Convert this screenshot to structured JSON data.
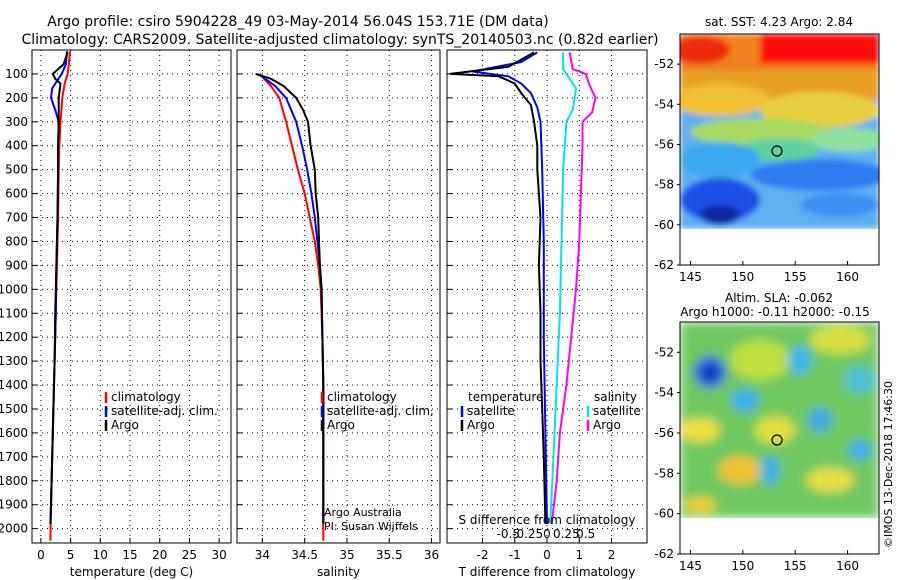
{
  "title_line1": "Argo profile: csiro 5904228_49 03-May-2014 56.04S 153.71E (DM data)",
  "title_line2": "Climatology: CARS2009. Satellite-adjusted climatology: synTS_20140503.nc (0.82d earlier)",
  "credit_line1": "Argo Australia",
  "credit_line2": "PI: Susan Wijffels",
  "vertical_stamp": "©IMOS 13-Dec-2018 17:46:30",
  "colors": {
    "climatology": "#ff0000",
    "satellite": "#0000ff",
    "argo": "#000000",
    "sat_salinity": "#00e5e5",
    "clim_salinity": "#ff00ff"
  },
  "chart_data": [
    {
      "type": "line",
      "xlabel": "temperature (deg C)",
      "xlim": [
        -1.5,
        32
      ],
      "xticks": [
        0,
        5,
        10,
        15,
        20,
        25,
        30
      ],
      "ylim": [
        2060,
        0
      ],
      "yticks": [
        100,
        200,
        300,
        400,
        500,
        600,
        700,
        800,
        900,
        1000,
        1100,
        1200,
        1300,
        1400,
        1500,
        1600,
        1700,
        1800,
        1900,
        2000
      ],
      "legend": [
        "climatology",
        "satellite-adj. clim.",
        "Argo"
      ],
      "series": [
        {
          "name": "climatology",
          "color": "#ff0000",
          "points": [
            [
              4.9,
              5
            ],
            [
              4.7,
              60
            ],
            [
              4.5,
              100
            ],
            [
              4.0,
              140
            ],
            [
              3.6,
              200
            ],
            [
              3.3,
              300
            ],
            [
              3.1,
              400
            ],
            [
              3.0,
              500
            ],
            [
              2.9,
              700
            ],
            [
              2.7,
              900
            ],
            [
              2.5,
              1100
            ],
            [
              2.3,
              1300
            ],
            [
              2.1,
              1500
            ],
            [
              1.9,
              1700
            ],
            [
              1.7,
              1900
            ],
            [
              1.6,
              2050
            ]
          ]
        },
        {
          "name": "satellite-adj. clim.",
          "color": "#0000ff",
          "points": [
            [
              4.4,
              5
            ],
            [
              4.2,
              60
            ],
            [
              3.5,
              100
            ],
            [
              1.9,
              160
            ],
            [
              1.7,
              200
            ],
            [
              2.4,
              250
            ],
            [
              3.0,
              300
            ],
            [
              2.9,
              400
            ],
            [
              2.9,
              500
            ],
            [
              2.8,
              700
            ],
            [
              2.6,
              900
            ],
            [
              2.5,
              1100
            ],
            [
              2.3,
              1300
            ],
            [
              2.1,
              1500
            ],
            [
              1.9,
              1700
            ],
            [
              1.7,
              1900
            ],
            [
              1.6,
              1980
            ]
          ]
        },
        {
          "name": "Argo",
          "color": "#000000",
          "points": [
            [
              4.5,
              10
            ],
            [
              3.8,
              60
            ],
            [
              2.0,
              100
            ],
            [
              2.4,
              120
            ],
            [
              3.3,
              140
            ],
            [
              3.0,
              200
            ],
            [
              3.0,
              300
            ],
            [
              2.9,
              400
            ],
            [
              2.9,
              500
            ],
            [
              2.8,
              700
            ],
            [
              2.6,
              900
            ],
            [
              2.4,
              1100
            ],
            [
              2.3,
              1300
            ],
            [
              2.1,
              1500
            ],
            [
              1.9,
              1700
            ],
            [
              1.7,
              1900
            ],
            [
              1.6,
              1980
            ]
          ]
        }
      ]
    },
    {
      "type": "line",
      "xlabel": "salinity",
      "xlim": [
        33.7,
        36.1
      ],
      "xticks": [
        34,
        34.5,
        35,
        35.5,
        36
      ],
      "xtick_labels": [
        "34",
        "34.5",
        "35",
        "35.5",
        "36"
      ],
      "ylim": [
        2060,
        0
      ],
      "legend": [
        "climatology",
        "satellite-adj. clim.",
        "Argo"
      ],
      "series": [
        {
          "name": "climatology",
          "color": "#ff0000",
          "points": [
            [
              33.97,
              100
            ],
            [
              34.1,
              150
            ],
            [
              34.2,
              200
            ],
            [
              34.28,
              300
            ],
            [
              34.35,
              400
            ],
            [
              34.42,
              500
            ],
            [
              34.5,
              600
            ],
            [
              34.56,
              700
            ],
            [
              34.62,
              800
            ],
            [
              34.66,
              900
            ],
            [
              34.69,
              1000
            ],
            [
              34.71,
              1200
            ],
            [
              34.72,
              1400
            ],
            [
              34.72,
              1600
            ],
            [
              34.72,
              1800
            ],
            [
              34.72,
              2050
            ]
          ]
        },
        {
          "name": "satellite-adj. clim.",
          "color": "#0000ff",
          "points": [
            [
              33.95,
              100
            ],
            [
              34.15,
              150
            ],
            [
              34.28,
              200
            ],
            [
              34.4,
              300
            ],
            [
              34.47,
              400
            ],
            [
              34.53,
              500
            ],
            [
              34.58,
              600
            ],
            [
              34.62,
              700
            ],
            [
              34.65,
              800
            ],
            [
              34.68,
              900
            ],
            [
              34.7,
              1000
            ],
            [
              34.71,
              1200
            ],
            [
              34.72,
              1400
            ],
            [
              34.72,
              1600
            ],
            [
              34.72,
              1800
            ],
            [
              34.72,
              1980
            ]
          ]
        },
        {
          "name": "Argo",
          "color": "#000000",
          "points": [
            [
              33.92,
              100
            ],
            [
              34.1,
              120
            ],
            [
              34.25,
              150
            ],
            [
              34.4,
              200
            ],
            [
              34.48,
              250
            ],
            [
              34.54,
              300
            ],
            [
              34.57,
              400
            ],
            [
              34.62,
              500
            ],
            [
              34.63,
              600
            ],
            [
              34.66,
              700
            ],
            [
              34.67,
              800
            ],
            [
              34.68,
              900
            ],
            [
              34.7,
              1000
            ],
            [
              34.71,
              1200
            ],
            [
              34.72,
              1400
            ],
            [
              34.72,
              1600
            ],
            [
              34.72,
              1800
            ],
            [
              34.72,
              1980
            ]
          ]
        }
      ]
    },
    {
      "type": "line",
      "xlabel": "T difference from climatology",
      "x2label": "S difference from climatology",
      "xlim": [
        -3.1,
        3.1
      ],
      "xticks": [
        -2,
        -1,
        0,
        1,
        2
      ],
      "xtick_labels": [
        "-2",
        "-1",
        "0",
        "1",
        "2"
      ],
      "x2ticks": [
        -0.5,
        -0.25,
        0,
        0.25,
        0.5
      ],
      "x2tick_labels": [
        "-0.5",
        "-0.25",
        "0",
        "0.25",
        "0.5"
      ],
      "ylim": [
        2060,
        0
      ],
      "legend_left_title": "temperature",
      "legend_left": [
        "satellite",
        "Argo"
      ],
      "legend_right_title": "salinity",
      "legend_right": [
        "satellite",
        "Argo"
      ],
      "series": [
        {
          "name": "T satellite",
          "color": "#0000ff",
          "points": [
            [
              -0.3,
              10
            ],
            [
              -0.8,
              50
            ],
            [
              -2.3,
              90
            ],
            [
              -1.2,
              110
            ],
            [
              -0.8,
              140
            ],
            [
              -0.5,
              180
            ],
            [
              -0.3,
              240
            ],
            [
              -0.2,
              300
            ],
            [
              -0.15,
              500
            ],
            [
              -0.1,
              800
            ],
            [
              -0.1,
              1200
            ],
            [
              -0.05,
              1600
            ],
            [
              0,
              1980
            ]
          ]
        },
        {
          "name": "T Argo",
          "color": "#000000",
          "points": [
            [
              -0.4,
              10
            ],
            [
              -1.2,
              70
            ],
            [
              -3.0,
              100
            ],
            [
              -1.5,
              110
            ],
            [
              -1.0,
              140
            ],
            [
              -0.8,
              180
            ],
            [
              -0.5,
              230
            ],
            [
              -0.4,
              300
            ],
            [
              -0.3,
              400
            ],
            [
              -0.3,
              500
            ],
            [
              -0.2,
              700
            ],
            [
              -0.25,
              900
            ],
            [
              -0.2,
              1100
            ],
            [
              -0.2,
              1300
            ],
            [
              -0.15,
              1500
            ],
            [
              -0.1,
              1700
            ],
            [
              -0.05,
              1980
            ]
          ]
        },
        {
          "name": "S satellite",
          "color": "#00e5e5",
          "points": [
            [
              0.5,
              10
            ],
            [
              0.5,
              80
            ],
            [
              0.9,
              160
            ],
            [
              0.8,
              250
            ],
            [
              0.6,
              300
            ],
            [
              0.5,
              500
            ],
            [
              0.45,
              800
            ],
            [
              0.4,
              1100
            ],
            [
              0.3,
              1400
            ],
            [
              0.2,
              1700
            ],
            [
              0.1,
              1980
            ]
          ]
        },
        {
          "name": "S Argo",
          "color": "#ff00ff",
          "points": [
            [
              0.7,
              10
            ],
            [
              0.8,
              80
            ],
            [
              1.2,
              100
            ],
            [
              1.3,
              140
            ],
            [
              1.5,
              200
            ],
            [
              1.4,
              260
            ],
            [
              1.1,
              300
            ],
            [
              1.1,
              400
            ],
            [
              1.05,
              600
            ],
            [
              1.0,
              800
            ],
            [
              0.9,
              1000
            ],
            [
              0.75,
              1200
            ],
            [
              0.6,
              1400
            ],
            [
              0.4,
              1600
            ],
            [
              0.3,
              1800
            ],
            [
              0.15,
              1980
            ]
          ]
        }
      ]
    },
    {
      "type": "heatmap",
      "title": "sat. SST: 4.23 Argo: 2.84",
      "xlim": [
        144,
        163
      ],
      "xticks": [
        145,
        150,
        155,
        160
      ],
      "ylim": [
        -62,
        -50.5
      ],
      "yticks": [
        -52,
        -54,
        -56,
        -58,
        -60,
        -62
      ],
      "float_position": [
        153.71,
        -56.04
      ]
    },
    {
      "type": "heatmap",
      "title": "Altim. SLA: -0.062",
      "subtitle": "Argo h1000: -0.11 h2000: -0.15",
      "xlim": [
        144,
        163
      ],
      "xticks": [
        145,
        150,
        155,
        160
      ],
      "ylim": [
        -62,
        -50.5
      ],
      "yticks": [
        -52,
        -54,
        -56,
        -58,
        -60,
        -62
      ],
      "float_position": [
        153.71,
        -56.04
      ]
    }
  ]
}
